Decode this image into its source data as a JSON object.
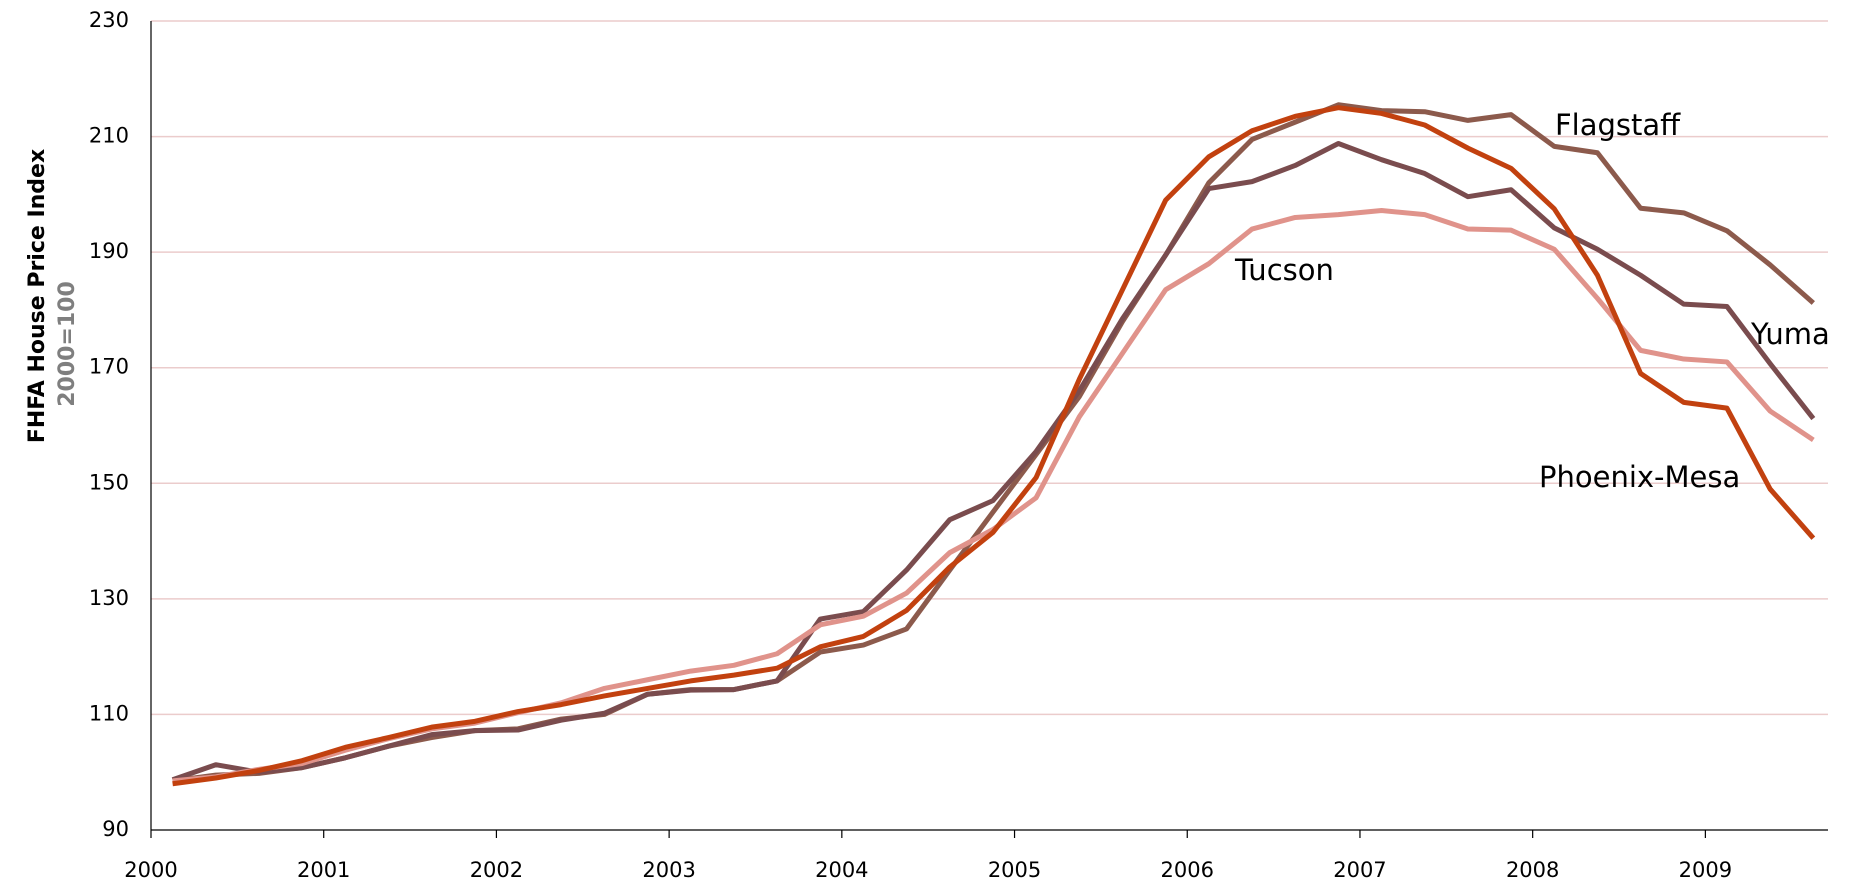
{
  "chart_data": {
    "type": "line",
    "y_label": "FHFA House Price Index",
    "y_sublabel": "2000=100",
    "x": [
      2000.125,
      2000.375,
      2000.625,
      2000.875,
      2001.125,
      2001.375,
      2001.625,
      2001.875,
      2002.125,
      2002.375,
      2002.625,
      2002.875,
      2003.125,
      2003.375,
      2003.625,
      2003.875,
      2004.125,
      2004.375,
      2004.625,
      2004.875,
      2005.125,
      2005.375,
      2005.625,
      2005.875,
      2006.125,
      2006.375,
      2006.625,
      2006.875,
      2007.125,
      2007.375,
      2007.625,
      2007.875,
      2008.125,
      2008.375,
      2008.625,
      2008.875,
      2009.125,
      2009.375,
      2009.625
    ],
    "series": [
      {
        "name": "Flagstaff",
        "color": "#8c5a4c",
        "values": [
          98.5,
          99.5,
          99.8,
          100.8,
          102.5,
          104.5,
          106,
          107.2,
          107.5,
          109.2,
          110,
          113.5,
          114.3,
          114.3,
          115.8,
          120.8,
          122,
          124.8,
          135,
          145,
          155,
          165,
          178,
          189.5,
          202,
          209.5,
          212.5,
          215.5,
          214.5,
          214.3,
          212.8,
          213.8,
          208.3,
          207.2,
          197.6,
          196.8,
          193.7,
          187.8,
          181.2
        ]
      },
      {
        "name": "Yuma",
        "color": "#7a4c4e",
        "values": [
          98.7,
          101.3,
          100,
          100.8,
          102.5,
          104.5,
          106.5,
          107.2,
          107.3,
          109,
          110.2,
          113.5,
          114.2,
          114.3,
          115.8,
          126.5,
          127.8,
          135,
          143.7,
          147,
          155.5,
          166,
          178.5,
          189.5,
          201,
          202.2,
          205,
          208.8,
          206,
          203.6,
          199.6,
          200.8,
          194.2,
          190.5,
          186,
          181,
          180.6,
          170.7,
          161.2
        ]
      },
      {
        "name": "Tucson",
        "color": "#e0938b",
        "values": [
          98.5,
          99.2,
          100.5,
          101.5,
          103.8,
          105.8,
          107.5,
          108.5,
          110.3,
          112,
          114.5,
          116,
          117.5,
          118.5,
          120.5,
          125.5,
          127,
          131,
          138,
          142,
          147.5,
          161.5,
          172.5,
          183.5,
          188,
          194,
          196,
          196.5,
          197.2,
          196.5,
          194,
          193.8,
          190.5,
          182,
          173,
          171.5,
          171,
          162.5,
          157.5
        ]
      },
      {
        "name": "Phoenix-Mesa",
        "color": "#c2410f",
        "values": [
          98,
          99,
          100.3,
          102,
          104.3,
          106,
          107.8,
          108.8,
          110.5,
          111.7,
          113.2,
          114.5,
          115.8,
          116.8,
          118,
          121.7,
          123.5,
          128,
          135.5,
          141.5,
          151,
          168,
          183.5,
          199,
          206.5,
          211,
          213.5,
          215,
          214,
          212,
          208,
          204.5,
          197.5,
          186,
          169,
          164,
          163,
          149,
          140.5
        ]
      }
    ],
    "xlim": [
      2000,
      2009.71
    ],
    "xticks": [
      2000,
      2001,
      2002,
      2003,
      2004,
      2005,
      2006,
      2007,
      2008,
      2009
    ],
    "ylim": [
      90,
      230
    ],
    "yticks": [
      90,
      110,
      130,
      150,
      170,
      190,
      210,
      230
    ],
    "grid": true
  }
}
